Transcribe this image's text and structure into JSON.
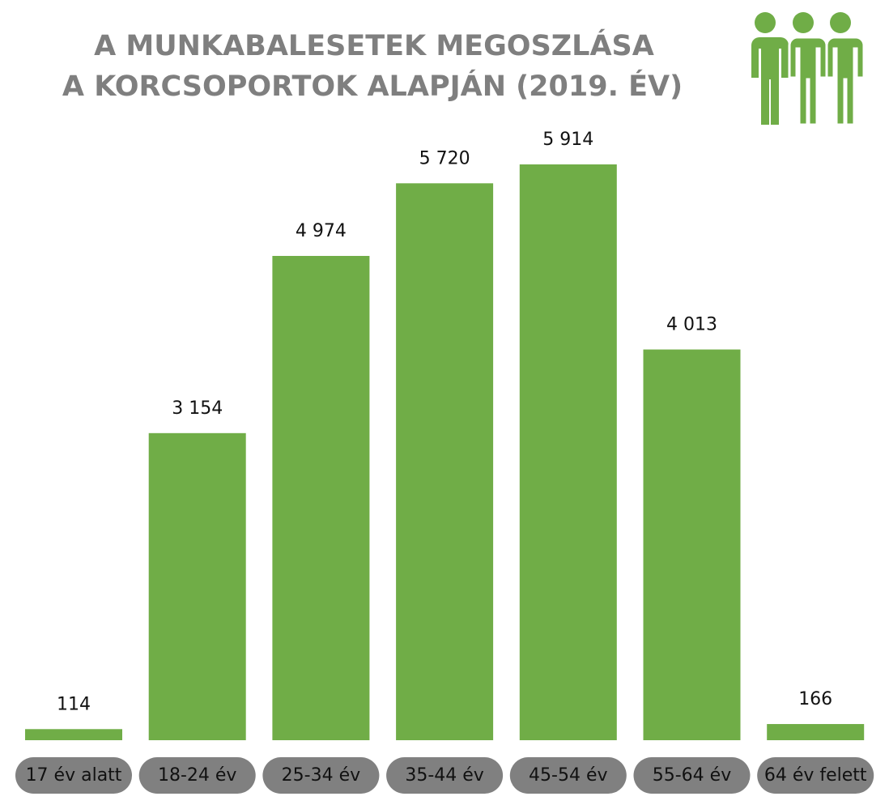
{
  "chart_data": {
    "type": "bar",
    "title": [
      "A MUNKABALESETEK MEGOSZLÁSA",
      "A KORCSOPORTOK ALAPJÁN (2019. ÉV)"
    ],
    "categories": [
      "17 év alatt",
      "18-24 év",
      "25-34 év",
      "35-44 év",
      "45-54 év",
      "55-64 év",
      "64 év felett"
    ],
    "values": [
      114,
      3154,
      4974,
      5720,
      5914,
      4013,
      166
    ],
    "value_labels": [
      "114",
      "3 154",
      "4 974",
      "5 720",
      "5 914",
      "4 013",
      "166"
    ],
    "color": "#70ad47"
  }
}
